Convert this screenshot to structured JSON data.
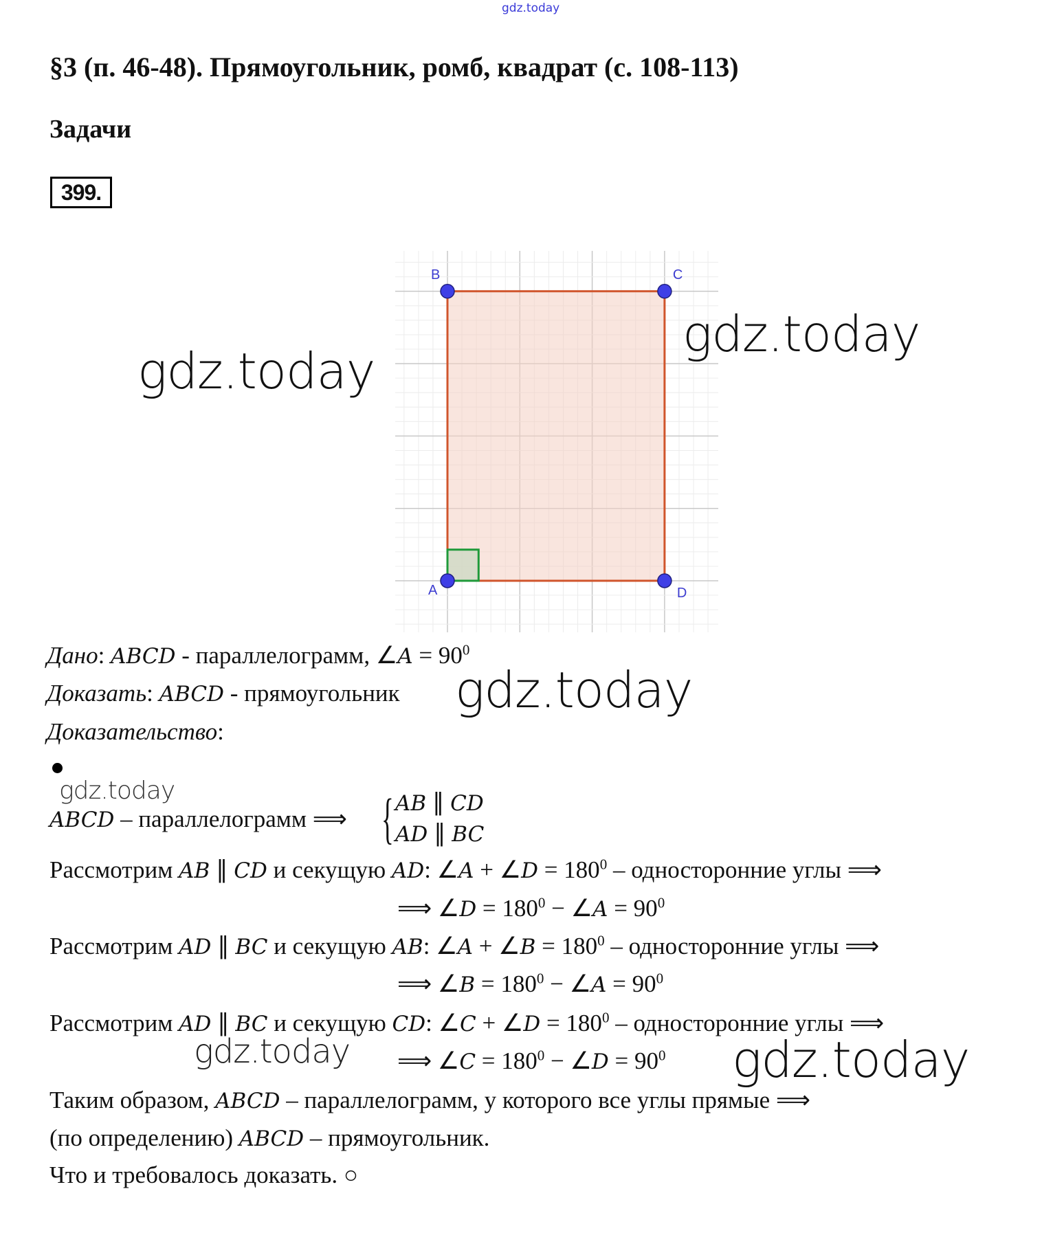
{
  "watermarks": {
    "top": "gdz.today",
    "left_figure": "gdz.today",
    "right_figure": "gdz.today",
    "mid": "gdz.today",
    "small_left": "gdz.today",
    "bottom_left": "gdz.today",
    "bottom_right": "gdz.today"
  },
  "header": {
    "title": "§3 (п. 46-48). Прямоугольник, ромб, квадрат (с. 108-113)",
    "section": "Задачи",
    "problem_number": "399."
  },
  "figure": {
    "colors": {
      "edge": "#d0552c",
      "fill": "#f4cfc2",
      "vertex": "#3f3fe6",
      "label": "#3c3cd0",
      "right_angle": "#1f9a3a",
      "grid_major": "#c8c8c8",
      "grid_minor": "#ececec"
    },
    "vertices": [
      {
        "label": "A",
        "x": 0,
        "y": 0
      },
      {
        "label": "B",
        "x": 0,
        "y": 4
      },
      {
        "label": "C",
        "x": 3,
        "y": 4
      },
      {
        "label": "D",
        "x": 3,
        "y": 0
      }
    ]
  },
  "given": {
    "lines": [
      [
        {
          "t": "Дано",
          "s": "it"
        },
        {
          "t": ": ",
          "s": "n"
        },
        {
          "t": "ABCD",
          "s": "i"
        },
        {
          "t": " - параллелограмм, ∠",
          "s": "n"
        },
        {
          "t": "A",
          "s": "i"
        },
        {
          "t": " = 90",
          "s": "n"
        },
        {
          "t": "0",
          "s": "sup"
        }
      ],
      [
        {
          "t": "Доказать",
          "s": "it"
        },
        {
          "t": ": ",
          "s": "n"
        },
        {
          "t": "ABCD",
          "s": "i"
        },
        {
          "t": " - прямоугольник",
          "s": "n"
        }
      ],
      [
        {
          "t": "Доказательство",
          "s": "it"
        },
        {
          "t": ":",
          "s": "n"
        }
      ]
    ]
  },
  "system": {
    "left": [
      {
        "t": "ABCD",
        "s": "i"
      },
      {
        "t": " – параллелограмм ⟹",
        "s": "n"
      }
    ],
    "top": [
      {
        "t": "AB",
        "s": "i"
      },
      {
        "t": " ∥ ",
        "s": "n"
      },
      {
        "t": "CD",
        "s": "i"
      }
    ],
    "bottom": [
      {
        "t": "AD",
        "s": "i"
      },
      {
        "t": " ∥ ",
        "s": "n"
      },
      {
        "t": "BC",
        "s": "i"
      }
    ]
  },
  "proof": {
    "lines": [
      [
        {
          "t": "Рассмотрим ",
          "s": "n"
        },
        {
          "t": "AB",
          "s": "i"
        },
        {
          "t": " ∥ ",
          "s": "n"
        },
        {
          "t": "CD",
          "s": "i"
        },
        {
          "t": " и секущую ",
          "s": "n"
        },
        {
          "t": "AD",
          "s": "i"
        },
        {
          "t": ": ∠",
          "s": "n"
        },
        {
          "t": "A",
          "s": "i"
        },
        {
          "t": " + ∠",
          "s": "n"
        },
        {
          "t": "D",
          "s": "i"
        },
        {
          "t": " = 180",
          "s": "n"
        },
        {
          "t": "0",
          "s": "sup"
        },
        {
          "t": " – односторонние углы ⟹",
          "s": "n"
        }
      ],
      [
        {
          "t": "⟹ ∠",
          "s": "n"
        },
        {
          "t": "D",
          "s": "i"
        },
        {
          "t": " = 180",
          "s": "n"
        },
        {
          "t": "0",
          "s": "sup"
        },
        {
          "t": " − ∠",
          "s": "n"
        },
        {
          "t": "A",
          "s": "i"
        },
        {
          "t": " = 90",
          "s": "n"
        },
        {
          "t": "0",
          "s": "sup"
        }
      ],
      [
        {
          "t": "Рассмотрим ",
          "s": "n"
        },
        {
          "t": "AD",
          "s": "i"
        },
        {
          "t": " ∥ ",
          "s": "n"
        },
        {
          "t": "BC",
          "s": "i"
        },
        {
          "t": " и секущую ",
          "s": "n"
        },
        {
          "t": "AB",
          "s": "i"
        },
        {
          "t": ": ∠",
          "s": "n"
        },
        {
          "t": "A",
          "s": "i"
        },
        {
          "t": " + ∠",
          "s": "n"
        },
        {
          "t": "B",
          "s": "i"
        },
        {
          "t": " = 180",
          "s": "n"
        },
        {
          "t": "0",
          "s": "sup"
        },
        {
          "t": " – односторонние углы ⟹",
          "s": "n"
        }
      ],
      [
        {
          "t": "⟹ ∠",
          "s": "n"
        },
        {
          "t": "B",
          "s": "i"
        },
        {
          "t": " = 180",
          "s": "n"
        },
        {
          "t": "0",
          "s": "sup"
        },
        {
          "t": " − ∠",
          "s": "n"
        },
        {
          "t": "A",
          "s": "i"
        },
        {
          "t": " = 90",
          "s": "n"
        },
        {
          "t": "0",
          "s": "sup"
        }
      ],
      [
        {
          "t": "Рассмотрим ",
          "s": "n"
        },
        {
          "t": "AD",
          "s": "i"
        },
        {
          "t": " ∥ ",
          "s": "n"
        },
        {
          "t": "BC",
          "s": "i"
        },
        {
          "t": " и секущую ",
          "s": "n"
        },
        {
          "t": "CD",
          "s": "i"
        },
        {
          "t": ": ∠",
          "s": "n"
        },
        {
          "t": "C",
          "s": "i"
        },
        {
          "t": " + ∠",
          "s": "n"
        },
        {
          "t": "D",
          "s": "i"
        },
        {
          "t": " = 180",
          "s": "n"
        },
        {
          "t": "0",
          "s": "sup"
        },
        {
          "t": " – односторонние углы ⟹",
          "s": "n"
        }
      ],
      [
        {
          "t": "⟹ ∠",
          "s": "n"
        },
        {
          "t": "C",
          "s": "i"
        },
        {
          "t": " = 180",
          "s": "n"
        },
        {
          "t": "0",
          "s": "sup"
        },
        {
          "t": " − ∠",
          "s": "n"
        },
        {
          "t": "D",
          "s": "i"
        },
        {
          "t": " = 90",
          "s": "n"
        },
        {
          "t": "0",
          "s": "sup"
        }
      ],
      [
        {
          "t": "Таким образом, ",
          "s": "n"
        },
        {
          "t": "ABCD",
          "s": "i"
        },
        {
          "t": " – параллелограмм, у которого все углы прямые ⟹",
          "s": "n"
        }
      ],
      [
        {
          "t": "(по определению) ",
          "s": "n"
        },
        {
          "t": "ABCD",
          "s": "i"
        },
        {
          "t": " – прямоугольник.",
          "s": "n"
        }
      ],
      [
        {
          "t": "Что и требовалось доказать. ○",
          "s": "n"
        }
      ]
    ]
  }
}
